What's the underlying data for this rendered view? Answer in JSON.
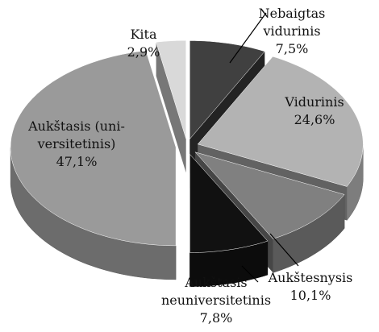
{
  "chart_data": {
    "type": "pie",
    "categories": [
      "Nebaigtas\nvidurinis",
      "Vidurinis",
      "Aukštesnysis",
      "Aukštasis\nneuniversitetinis",
      "Aukštasis (uni-\nversitetinis)",
      "Kita"
    ],
    "values": [
      7.5,
      24.6,
      10.1,
      7.8,
      47.1,
      2.9
    ],
    "value_labels": [
      "7,5%",
      "24,6%",
      "10,1%",
      "7,8%",
      "47,1%",
      "2,9%"
    ],
    "colors": [
      "#404040",
      "#b3b3b3",
      "#808080",
      "#111111",
      "#9a9a9a",
      "#d9d9d9"
    ]
  }
}
